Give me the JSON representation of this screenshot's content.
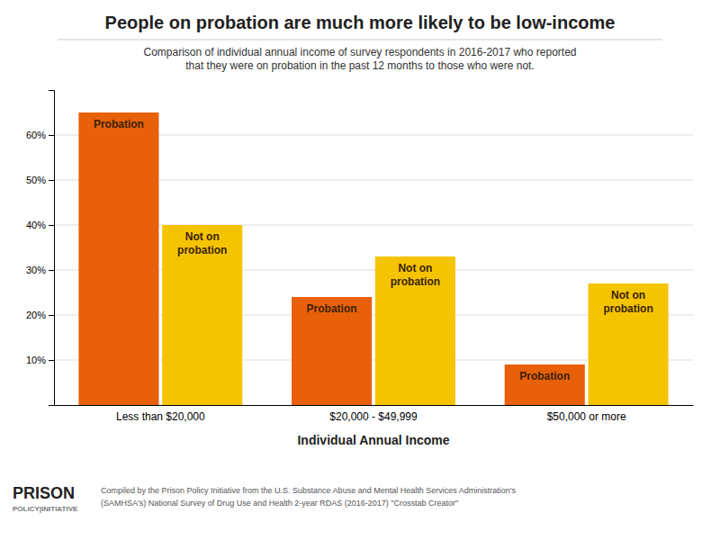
{
  "chart_data": {
    "type": "bar",
    "title": "People on probation are much more likely to be low-income",
    "subtitle": "Comparison of individual annual income of survey respondents in 2016-2017 who reported\nthat they were on probation in the past 12 months to those who were not.",
    "x_label": "Individual Annual Income",
    "categories": [
      "Less than $20,000",
      "$20,000 - $49,999",
      "$50,000 or more"
    ],
    "series": [
      {
        "name": "Probation",
        "color": "#E8600A",
        "values": [
          65,
          24,
          9
        ]
      },
      {
        "name": "Not on\nprobation",
        "color": "#F5C400",
        "values": [
          40,
          33,
          27
        ]
      }
    ],
    "ylim": [
      0,
      70
    ],
    "yticks": [
      {
        "value": 10,
        "label": "10%"
      },
      {
        "value": 20,
        "label": "20%"
      },
      {
        "value": 30,
        "label": "30%"
      },
      {
        "value": 40,
        "label": "40%"
      },
      {
        "value": 50,
        "label": "50%"
      },
      {
        "value": 60,
        "label": "60%"
      }
    ],
    "grid": true,
    "annotations": [
      "PRISON",
      "POLICY|INITIATIVE",
      "Compiled by the Prison Policy Initiative from the  U.S. Substance Abuse and Mental Health Services Administration's\n(SAMHSA's) National Survey of Drug Use and Health 2-year RDAS (2016-2017) \"Crosstab Creator\""
    ]
  }
}
